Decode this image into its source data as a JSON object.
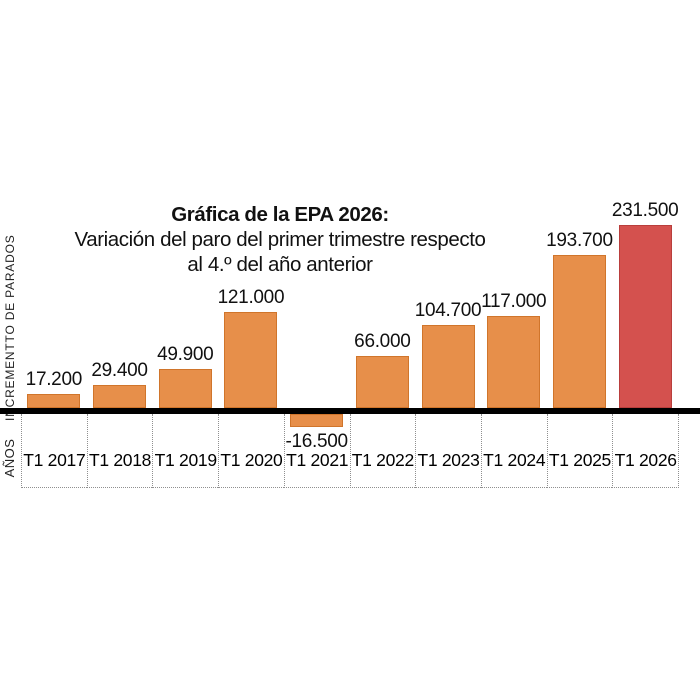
{
  "page": {
    "background": "#ffffff"
  },
  "chart_data": {
    "type": "bar",
    "title": "Gráfica de la EPA 2026:",
    "subtitle_line1": "Variación del paro del primer trimestre respecto",
    "subtitle_line2": "al 4.º del año anterior",
    "ylabel": "INCREMENTTO DE PARADOS",
    "xlabel": "AÑOS",
    "categories": [
      "T1 2017",
      "T1 2018",
      "T1 2019",
      "T1 2020",
      "T1 2021",
      "T1 2022",
      "T1 2023",
      "T1 2024",
      "T1 2025",
      "T1 2026"
    ],
    "values": [
      17200,
      29400,
      49900,
      121000,
      -16500,
      66000,
      104700,
      117000,
      193700,
      231500
    ],
    "value_labels": [
      "17.200",
      "29.400",
      "49.900",
      "121.000",
      "-16.500",
      "66.000",
      "104.700",
      "117.000",
      "193.700",
      "231.500"
    ],
    "highlight_index": 9,
    "ylim": [
      -20000,
      240000
    ],
    "grid": "off",
    "legend": "none",
    "colors": {
      "bar": "#e78f4a",
      "bar_border": "#d0752b",
      "highlight": "#d4514e",
      "highlight_border": "#b93e3c",
      "axis": "#000000",
      "box_border": "#8f8f8f",
      "text": "#111111"
    }
  }
}
